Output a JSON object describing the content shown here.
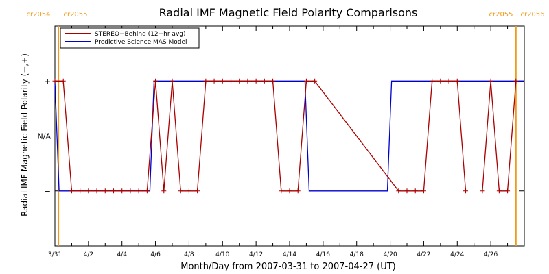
{
  "chart_data": {
    "type": "line",
    "title": "Radial IMF Magnetic Field Polarity Comparisons",
    "xlabel": "Month/Day from 2007-03-31 to 2007-04-27 (UT)",
    "ylabel": "Radial IMF Magnetic Field Polarity (−,+)",
    "xlim": [
      "2007-03-31",
      "2007-04-28"
    ],
    "ylim": [
      -2,
      2
    ],
    "x_ticks": [
      {
        "date": "2007-03-31",
        "label": "3/31"
      },
      {
        "date": "2007-04-02",
        "label": "4/2"
      },
      {
        "date": "2007-04-04",
        "label": "4/4"
      },
      {
        "date": "2007-04-06",
        "label": "4/6"
      },
      {
        "date": "2007-04-08",
        "label": "4/8"
      },
      {
        "date": "2007-04-10",
        "label": "4/10"
      },
      {
        "date": "2007-04-12",
        "label": "4/12"
      },
      {
        "date": "2007-04-14",
        "label": "4/14"
      },
      {
        "date": "2007-04-16",
        "label": "4/16"
      },
      {
        "date": "2007-04-18",
        "label": "4/18"
      },
      {
        "date": "2007-04-20",
        "label": "4/20"
      },
      {
        "date": "2007-04-22",
        "label": "4/22"
      },
      {
        "date": "2007-04-24",
        "label": "4/24"
      },
      {
        "date": "2007-04-26",
        "label": "4/26"
      }
    ],
    "y_ticks": [
      {
        "value": 1,
        "label": "+"
      },
      {
        "value": 0,
        "label": "N/A"
      },
      {
        "value": -1,
        "label": "−"
      }
    ],
    "legend": {
      "placement": "top-left",
      "entries": [
        "STEREO−Behind (12−hr avg)",
        "Predictive Science MAS Model"
      ]
    },
    "rotation_markers": [
      {
        "date": "2007-03-31T05:00",
        "left_label": "cr2054",
        "right_label": "cr2055",
        "color": "#ef9a1a"
      },
      {
        "date": "2007-04-27T12:00",
        "left_label": "cr2055",
        "right_label": "cr2056",
        "color": "#ef9a1a"
      }
    ],
    "series": [
      {
        "name": "STEREO−Behind (12−hr avg)",
        "color": "#aa0000",
        "marker": "plus",
        "points": [
          [
            "2007-03-31T00:00",
            1
          ],
          [
            "2007-03-31T12:00",
            1
          ],
          [
            "2007-04-01T00:00",
            -1
          ],
          [
            "2007-04-01T12:00",
            -1
          ],
          [
            "2007-04-02T00:00",
            -1
          ],
          [
            "2007-04-02T12:00",
            -1
          ],
          [
            "2007-04-03T00:00",
            -1
          ],
          [
            "2007-04-03T12:00",
            -1
          ],
          [
            "2007-04-04T00:00",
            -1
          ],
          [
            "2007-04-04T12:00",
            -1
          ],
          [
            "2007-04-05T00:00",
            -1
          ],
          [
            "2007-04-05T12:00",
            -1
          ],
          [
            "2007-04-06T00:00",
            1
          ],
          [
            "2007-04-06T12:00",
            -1
          ],
          [
            "2007-04-07T00:00",
            1
          ],
          [
            "2007-04-07T12:00",
            -1
          ],
          [
            "2007-04-08T00:00",
            -1
          ],
          [
            "2007-04-08T12:00",
            -1
          ],
          [
            "2007-04-09T00:00",
            1
          ],
          [
            "2007-04-09T12:00",
            1
          ],
          [
            "2007-04-10T00:00",
            1
          ],
          [
            "2007-04-10T12:00",
            1
          ],
          [
            "2007-04-11T00:00",
            1
          ],
          [
            "2007-04-11T12:00",
            1
          ],
          [
            "2007-04-12T00:00",
            1
          ],
          [
            "2007-04-12T12:00",
            1
          ],
          [
            "2007-04-13T00:00",
            1
          ],
          [
            "2007-04-13T12:00",
            -1
          ],
          [
            "2007-04-14T00:00",
            -1
          ],
          [
            "2007-04-14T12:00",
            -1
          ],
          [
            "2007-04-15T00:00",
            1
          ],
          [
            "2007-04-15T12:00",
            1
          ],
          [
            "2007-04-20T12:00",
            -1
          ],
          [
            "2007-04-21T00:00",
            -1
          ],
          [
            "2007-04-21T12:00",
            -1
          ],
          [
            "2007-04-22T00:00",
            -1
          ],
          [
            "2007-04-22T12:00",
            1
          ],
          [
            "2007-04-23T00:00",
            1
          ],
          [
            "2007-04-23T12:00",
            1
          ],
          [
            "2007-04-24T00:00",
            1
          ],
          [
            "2007-04-24T12:00",
            -1
          ],
          [
            "2007-04-25T00:00",
            null
          ],
          [
            "2007-04-25T12:00",
            -1
          ],
          [
            "2007-04-26T00:00",
            1
          ],
          [
            "2007-04-26T12:00",
            -1
          ],
          [
            "2007-04-27T00:00",
            -1
          ],
          [
            "2007-04-27T12:00",
            1
          ]
        ]
      },
      {
        "name": "Predictive Science MAS Model",
        "color": "#0000cc",
        "points": [
          [
            "2007-03-31T00:00",
            1
          ],
          [
            "2007-03-31T06:00",
            -1
          ],
          [
            "2007-04-05T16:00",
            -1
          ],
          [
            "2007-04-05T22:00",
            1
          ],
          [
            "2007-04-14T22:00",
            1
          ],
          [
            "2007-04-15T04:00",
            -1
          ],
          [
            "2007-04-19T20:00",
            -1
          ],
          [
            "2007-04-20T02:00",
            1
          ],
          [
            "2007-04-28T00:00",
            1
          ]
        ]
      }
    ]
  }
}
